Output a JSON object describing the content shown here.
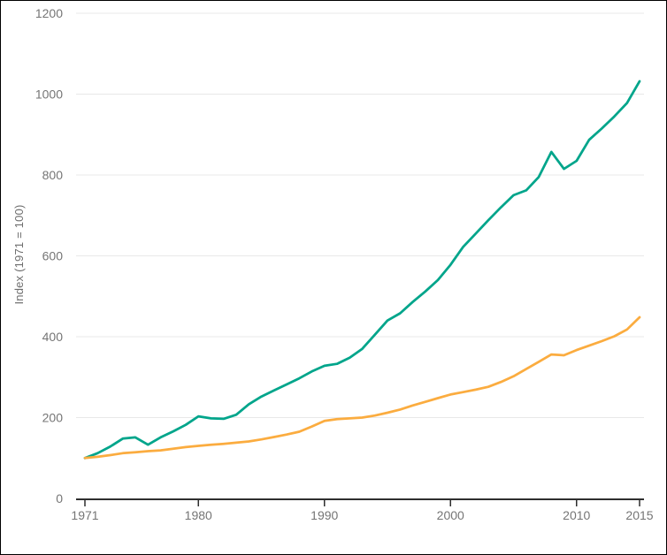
{
  "page": {
    "background": "#ffffff",
    "border_color": "#000000"
  },
  "chart_data": {
    "type": "line",
    "ylabel": "Index (1971 = 100)",
    "ylim": [
      0,
      1200
    ],
    "yticks": [
      0,
      200,
      400,
      600,
      800,
      1000,
      1200
    ],
    "xticks": [
      1971,
      1980,
      1990,
      2000,
      2010,
      2015
    ],
    "grid": true,
    "legend": "none",
    "x": [
      1971,
      1972,
      1973,
      1974,
      1975,
      1976,
      1977,
      1978,
      1979,
      1980,
      1981,
      1982,
      1983,
      1984,
      1985,
      1986,
      1987,
      1988,
      1989,
      1990,
      1991,
      1992,
      1993,
      1994,
      1995,
      1996,
      1997,
      1998,
      1999,
      2000,
      2001,
      2002,
      2003,
      2004,
      2005,
      2006,
      2007,
      2008,
      2009,
      2010,
      2011,
      2012,
      2013,
      2014,
      2015
    ],
    "series": [
      {
        "name": "teal-line",
        "color": "#00a58b",
        "values": [
          100,
          112,
          128,
          148,
          151,
          133,
          151,
          166,
          182,
          203,
          198,
          197,
          207,
          233,
          252,
          267,
          282,
          297,
          314,
          328,
          333,
          348,
          370,
          405,
          440,
          458,
          486,
          512,
          540,
          578,
          622,
          655,
          688,
          720,
          750,
          762,
          795,
          857,
          815,
          835,
          887,
          915,
          945,
          978,
          1032
        ]
      },
      {
        "name": "orange-line",
        "color": "#fbac3f",
        "values": [
          100,
          103,
          107,
          112,
          114,
          117,
          119,
          123,
          127,
          130,
          133,
          135,
          138,
          141,
          146,
          152,
          158,
          165,
          178,
          192,
          196,
          198,
          200,
          205,
          212,
          220,
          230,
          239,
          248,
          257,
          263,
          269,
          276,
          288,
          302,
          320,
          338,
          356,
          354,
          367,
          378,
          389,
          401,
          418,
          448
        ]
      }
    ],
    "style": {
      "axis_color": "#2e2e2e",
      "grid_color": "#e8e8e8",
      "tick_label_color": "#757575"
    }
  }
}
